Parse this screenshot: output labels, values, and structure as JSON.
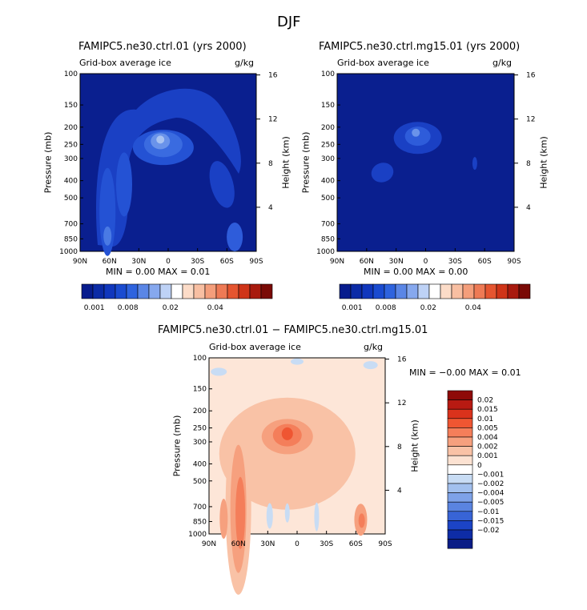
{
  "figure_title": "DJF",
  "colors": {
    "panel_bg_ctrl": "#0A1F8F",
    "panel_bg_diff": "#FDE6D8"
  },
  "chart_data": [
    {
      "type": "heatmap",
      "title": "FAMIPC5.ne30.ctrl.01 (yrs 2000)",
      "subtitle_left": "Grid-box average ice",
      "units": "g/kg",
      "xlabel": "",
      "ylabel": "Pressure (mb)",
      "y2label": "Height (km)",
      "x_ticks": [
        "90N",
        "60N",
        "30N",
        "0",
        "30S",
        "60S",
        "90S"
      ],
      "y_ticks": [
        "100",
        "150",
        "200",
        "250",
        "300",
        "400",
        "500",
        "700",
        "850",
        "1000"
      ],
      "y2_ticks": [
        "16",
        "12",
        "8",
        "4"
      ],
      "min_max_text": "MIN =    0.00   MAX =    0.01",
      "colorbar": {
        "colors": [
          "#071C8D",
          "#0B2BA6",
          "#1037BD",
          "#1A4BD0",
          "#2E63DE",
          "#5A86E6",
          "#86A8EE",
          "#BED2F6",
          "#FFFFFF",
          "#FCDCC8",
          "#F8BFA2",
          "#F49E7B",
          "#EE7A55",
          "#E55530",
          "#CF3418",
          "#A81A0E",
          "#7A0A06"
        ],
        "labels": [
          "0.001",
          "0.008",
          "0.02",
          "0.04"
        ]
      },
      "features": [
        {
          "name": "upper tropospheric ice maximum near equator",
          "lat": 5,
          "pressure_mb": 250,
          "value": 0.01
        },
        {
          "name": "northern mid-latitude column",
          "lat": 60,
          "pressure_mb": 700,
          "value": 0.006
        },
        {
          "name": "southern high-latitude low-level ice",
          "lat": -65,
          "pressure_mb": 850,
          "value": 0.005
        }
      ]
    },
    {
      "type": "heatmap",
      "title": "FAMIPC5.ne30.ctrl.mg15.01 (yrs 2000)",
      "subtitle_left": "Grid-box average ice",
      "units": "g/kg",
      "xlabel": "",
      "ylabel": "Pressure (mb)",
      "y2label": "Height (km)",
      "x_ticks": [
        "90N",
        "60N",
        "30N",
        "0",
        "30S",
        "60S",
        "90S"
      ],
      "y_ticks": [
        "100",
        "150",
        "200",
        "250",
        "300",
        "400",
        "500",
        "700",
        "850",
        "1000"
      ],
      "y2_ticks": [
        "16",
        "12",
        "8",
        "4"
      ],
      "min_max_text": "MIN =    0.00   MAX =    0.00",
      "colorbar": {
        "colors": [
          "#071C8D",
          "#0B2BA6",
          "#1037BD",
          "#1A4BD0",
          "#2E63DE",
          "#5A86E6",
          "#86A8EE",
          "#BED2F6",
          "#FFFFFF",
          "#FCDCC8",
          "#F8BFA2",
          "#F49E7B",
          "#EE7A55",
          "#E55530",
          "#CF3418",
          "#A81A0E",
          "#7A0A06"
        ],
        "labels": [
          "0.001",
          "0.008",
          "0.02",
          "0.04"
        ]
      },
      "features": [
        {
          "name": "upper tropospheric ice maximum near equator",
          "lat": 5,
          "pressure_mb": 220,
          "value": 0.004
        },
        {
          "name": "weak northern mid-latitude patch",
          "lat": 45,
          "pressure_mb": 380,
          "value": 0.002
        }
      ]
    },
    {
      "type": "heatmap",
      "title": "FAMIPC5.ne30.ctrl.01 − FAMIPC5.ne30.ctrl.mg15.01",
      "subtitle_left": "Grid-box average ice",
      "units": "g/kg",
      "xlabel": "",
      "ylabel": "Pressure (mb)",
      "y2label": "Height (km)",
      "x_ticks": [
        "90N",
        "60N",
        "30N",
        "0",
        "30S",
        "60S",
        "90S"
      ],
      "y_ticks": [
        "100",
        "150",
        "200",
        "250",
        "300",
        "400",
        "500",
        "700",
        "850",
        "1000"
      ],
      "y2_ticks": [
        "16",
        "12",
        "8",
        "4"
      ],
      "min_max_text": "MIN =   −0.00   MAX =    0.01",
      "colorbar": {
        "colors": [
          "#8E0A08",
          "#B81A12",
          "#DA321C",
          "#EF5632",
          "#F47E5A",
          "#F6A07E",
          "#F9C2A6",
          "#FCE2D2",
          "#FFFFFF",
          "#C8DCF4",
          "#A2C0EE",
          "#7EA2E8",
          "#5A84E0",
          "#3864D6",
          "#1C44C6",
          "#0E2CA6",
          "#0A1C86"
        ],
        "labels": [
          "0.02",
          "0.015",
          "0.01",
          "0.005",
          "0.004",
          "0.002",
          "0.001",
          "0",
          "−0.001",
          "−0.002",
          "−0.004",
          "−0.005",
          "−0.01",
          "−0.015",
          "−0.02"
        ]
      },
      "features": [
        {
          "name": "positive difference maximum near equator",
          "lat": 5,
          "pressure_mb": 280,
          "value": 0.008
        },
        {
          "name": "northern mid-latitude positive column",
          "lat": 60,
          "pressure_mb": 750,
          "value": 0.005
        },
        {
          "name": "southern low-level positive patch",
          "lat": -65,
          "pressure_mb": 840,
          "value": 0.004
        },
        {
          "name": "weak negative patches",
          "lat": 20,
          "pressure_mb": 800,
          "value": -0.001
        }
      ]
    }
  ]
}
